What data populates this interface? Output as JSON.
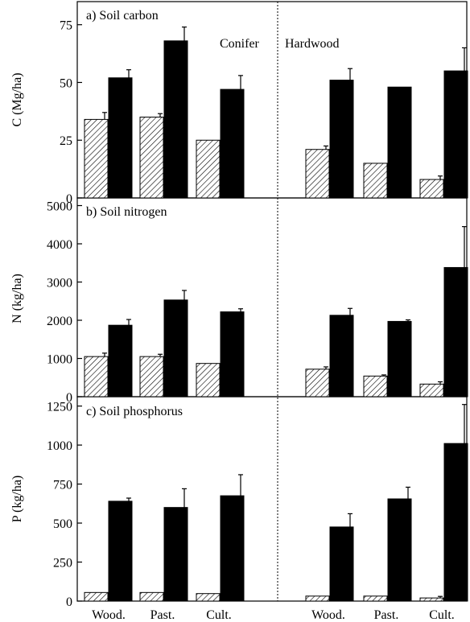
{
  "chart_data": [
    {
      "type": "bar",
      "title": "a) Soil carbon",
      "ylabel": "C (Mg/ha)",
      "ylim": [
        0,
        85
      ],
      "yticks": [
        "0",
        "25",
        "50",
        "75"
      ],
      "group_labels": [
        "Conifer",
        "Hardwood"
      ],
      "categories": [
        "Conifer-Wood.",
        "Conifer-Past.",
        "Conifer-Cult.",
        "Hardwood-Wood.",
        "Hardwood-Past.",
        "Hardwood-Cult."
      ],
      "series": [
        {
          "style": "hatched",
          "values": [
            34,
            35,
            25,
            21,
            15,
            8
          ],
          "errors": [
            3,
            1.5,
            0,
            1.5,
            0,
            1.5
          ]
        },
        {
          "style": "solid",
          "values": [
            52,
            68,
            47,
            51,
            48,
            55
          ],
          "errors": [
            3.5,
            6,
            6,
            5,
            0,
            10
          ]
        }
      ]
    },
    {
      "type": "bar",
      "title": "b) Soil nitrogen",
      "ylabel": "N (kg/ha)",
      "ylim": [
        0,
        5200
      ],
      "yticks": [
        "0",
        "1000",
        "2000",
        "3000",
        "4000",
        "5000"
      ],
      "categories": [
        "Conifer-Wood.",
        "Conifer-Past.",
        "Conifer-Cult.",
        "Hardwood-Wood.",
        "Hardwood-Past.",
        "Hardwood-Cult."
      ],
      "series": [
        {
          "style": "hatched",
          "values": [
            1050,
            1050,
            870,
            720,
            540,
            330
          ],
          "errors": [
            90,
            60,
            0,
            60,
            30,
            60
          ]
        },
        {
          "style": "solid",
          "values": [
            1870,
            2530,
            2220,
            2130,
            1970,
            3380
          ],
          "errors": [
            150,
            250,
            80,
            180,
            40,
            1070
          ]
        }
      ]
    },
    {
      "type": "bar",
      "title": "c) Soil phosphorus",
      "ylabel": "P (kg/ha)",
      "ylim": [
        0,
        1310
      ],
      "yticks": [
        "0",
        "250",
        "500",
        "750",
        "1000",
        "1250"
      ],
      "categories": [
        "Conifer-Wood.",
        "Conifer-Past.",
        "Conifer-Cult.",
        "Hardwood-Wood.",
        "Hardwood-Past.",
        "Hardwood-Cult."
      ],
      "series": [
        {
          "style": "hatched",
          "values": [
            55,
            55,
            48,
            32,
            32,
            20
          ],
          "errors": [
            0,
            0,
            0,
            0,
            0,
            10
          ]
        },
        {
          "style": "solid",
          "values": [
            640,
            600,
            675,
            475,
            655,
            1010
          ],
          "errors": [
            20,
            120,
            135,
            85,
            75,
            250
          ]
        }
      ]
    }
  ],
  "x_labels": [
    "Wood.",
    "Past.",
    "Cult.",
    "Wood.",
    "Past.",
    "Cult."
  ]
}
